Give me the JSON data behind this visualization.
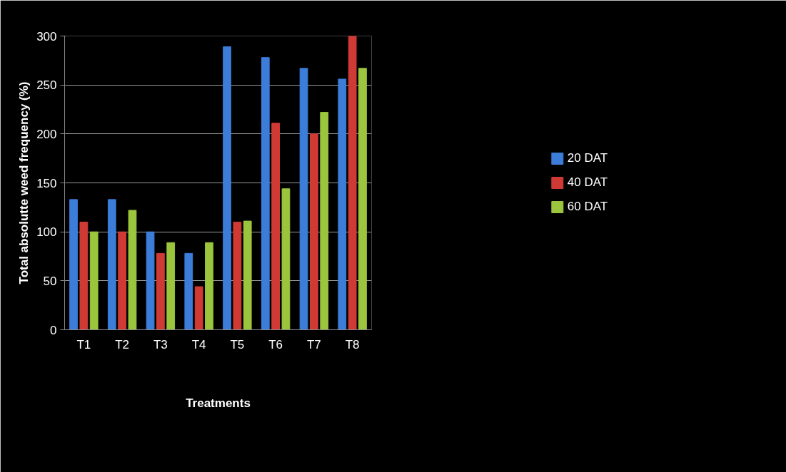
{
  "chart_data": {
    "type": "bar",
    "xlabel": "Treatments",
    "ylabel": "Total absolutte weed frequency (%)",
    "categories": [
      "T1",
      "T2",
      "T3",
      "T4",
      "T5",
      "T6",
      "T7",
      "T8"
    ],
    "series": [
      {
        "name": "20 DAT",
        "color": "#3b7dd8",
        "values": [
          133,
          133,
          100,
          78,
          289,
          278,
          267,
          256
        ]
      },
      {
        "name": "40 DAT",
        "color": "#d03a34",
        "values": [
          110,
          100,
          78,
          44,
          110,
          211,
          200,
          300
        ]
      },
      {
        "name": "60 DAT",
        "color": "#9bc53d",
        "values": [
          100,
          122,
          89,
          89,
          111,
          144,
          222,
          267
        ]
      }
    ],
    "ylim": [
      0,
      300
    ],
    "yticks": [
      0,
      50,
      100,
      150,
      200,
      250,
      300
    ],
    "grid": "y",
    "legend": "right"
  }
}
